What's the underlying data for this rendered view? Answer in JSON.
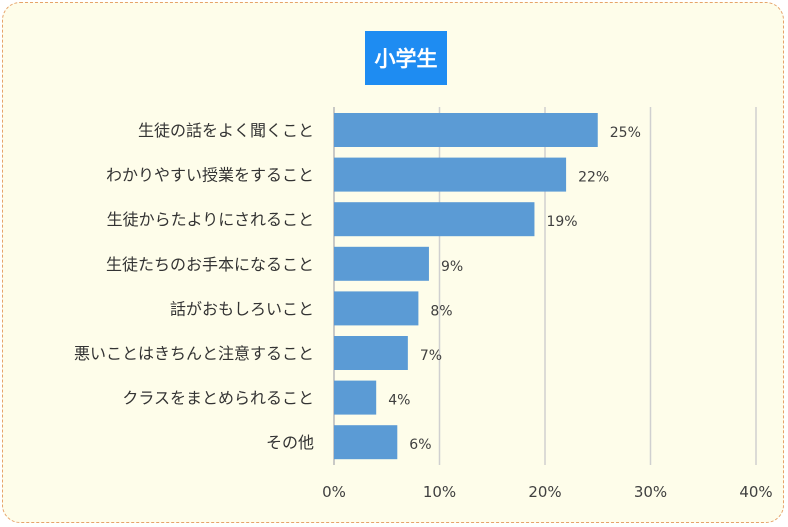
{
  "chart_data": {
    "type": "bar",
    "orientation": "horizontal",
    "title": "小学生",
    "categories": [
      "生徒の話をよく聞くこと",
      "わかりやすい授業をすること",
      "生徒からたよりにされること",
      "生徒たちのお手本になること",
      "話がおもしろいこと",
      "悪いことはきちんと注意すること",
      "クラスをまとめられること",
      "その他"
    ],
    "values": [
      25,
      22,
      19,
      9,
      8,
      7,
      4,
      6
    ],
    "value_labels": [
      "25%",
      "22%",
      "19%",
      "9%",
      "8%",
      "7%",
      "4%",
      "6%"
    ],
    "xlim": [
      0,
      40
    ],
    "ticks": [
      0,
      10,
      20,
      30,
      40
    ],
    "tick_labels": [
      "0%",
      "10%",
      "20%",
      "30%",
      "40%"
    ],
    "grid": true,
    "colors": {
      "bar": "#5b9bd5",
      "title_bg": "#1e8cf2",
      "background": "#fefdea",
      "border": "#e6a36a",
      "grid": "#d0d0d0"
    }
  }
}
